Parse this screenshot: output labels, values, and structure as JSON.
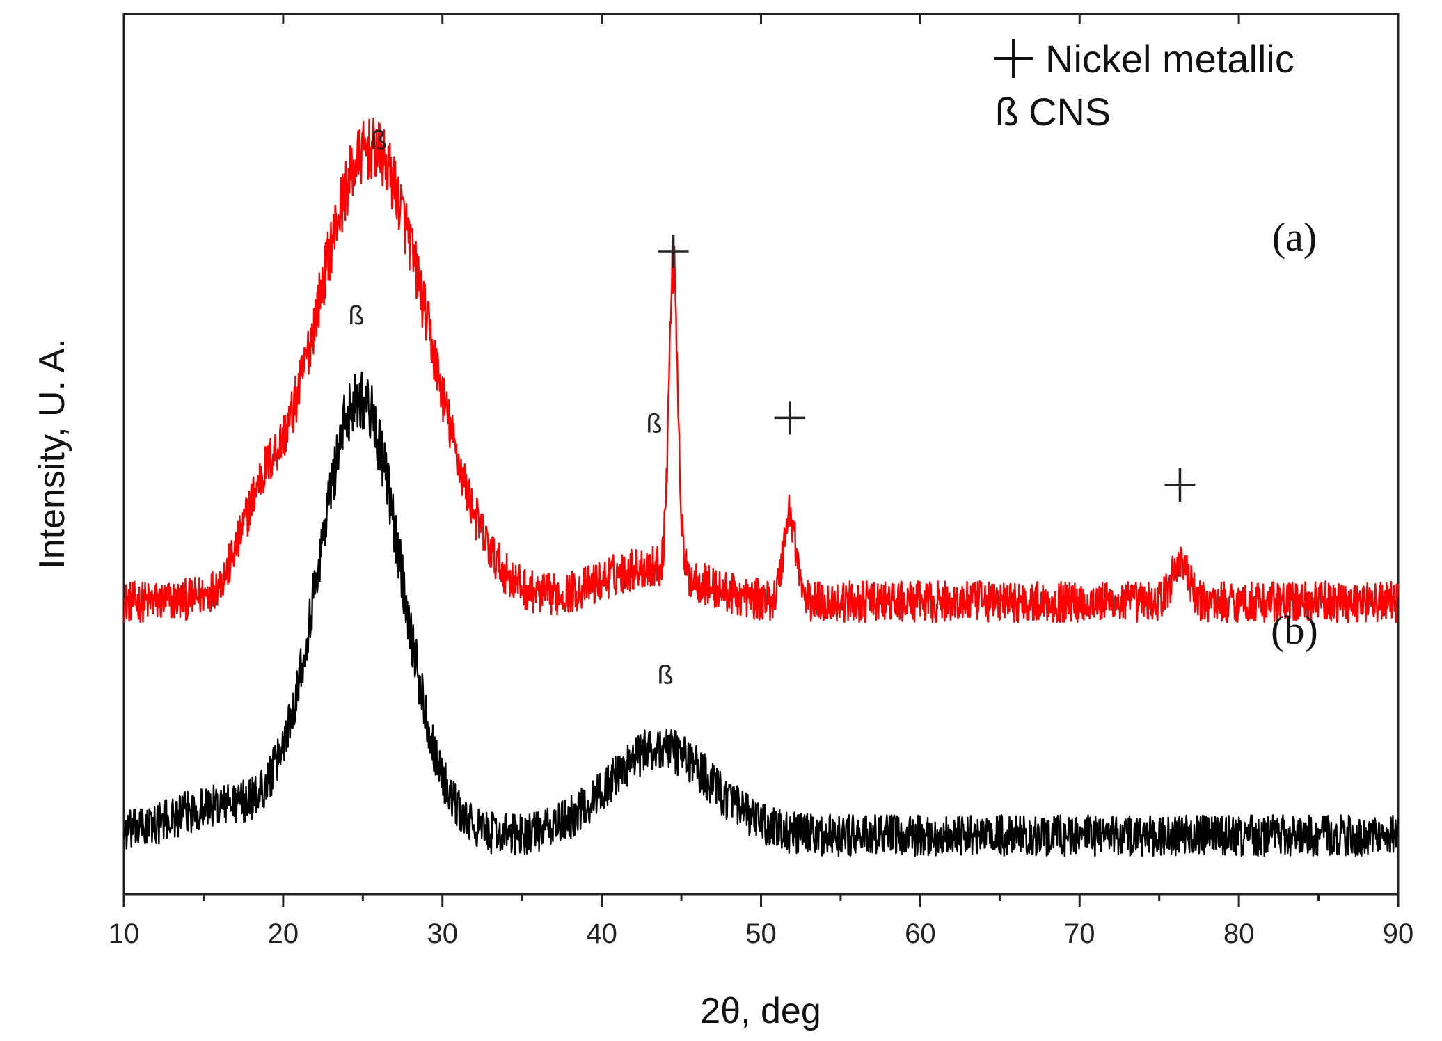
{
  "chart_data": {
    "type": "line",
    "title": "",
    "xlabel": "2θ, deg",
    "ylabel": "Intensity, U. A.",
    "xlim": [
      10,
      90
    ],
    "x_ticks": [
      10,
      20,
      30,
      40,
      50,
      60,
      70,
      80,
      90
    ],
    "y_ticks": [],
    "grid": false,
    "legend": {
      "position": "top-right",
      "entries": [
        {
          "symbol": "+",
          "label": "Nickel metallic"
        },
        {
          "symbol": "ß",
          "label": "CNS"
        }
      ]
    },
    "series": [
      {
        "name": "(a)",
        "color": "#ff0000",
        "baseline": 1.0,
        "noise": 0.09,
        "peaks": [
          {
            "center": 25.5,
            "height": 1.55,
            "width": 3.6
          },
          {
            "center": 18.5,
            "height": 0.18,
            "width": 1.2
          },
          {
            "center": 43.0,
            "height": 0.12,
            "width": 3.0
          },
          {
            "center": 44.5,
            "height": 1.05,
            "width": 0.28
          },
          {
            "center": 51.8,
            "height": 0.3,
            "width": 0.4
          },
          {
            "center": 76.3,
            "height": 0.14,
            "width": 0.5
          }
        ],
        "annotations": [
          {
            "x": 26.0,
            "text": "ß",
            "level": 2.55
          },
          {
            "x": 43.3,
            "text": "ß",
            "level": 1.58
          },
          {
            "x": 44.5,
            "text": "+",
            "level": 2.2
          },
          {
            "x": 51.8,
            "text": "+",
            "level": 1.63
          },
          {
            "x": 76.3,
            "text": "+",
            "level": 1.4
          }
        ],
        "panel_label": "(a)"
      },
      {
        "name": "(b)",
        "color": "#000000",
        "baseline": 0.2,
        "noise": 0.09,
        "peaks": [
          {
            "center": 24.8,
            "height": 1.5,
            "width": 2.6
          },
          {
            "center": 43.7,
            "height": 0.3,
            "width": 3.2
          },
          {
            "center": 16.0,
            "height": 0.1,
            "width": 3.0
          }
        ],
        "annotations": [
          {
            "x": 24.6,
            "text": "ß",
            "level": 1.95
          },
          {
            "x": 44.0,
            "text": "ß",
            "level": 0.72
          }
        ],
        "panel_label": "(b)"
      }
    ]
  }
}
